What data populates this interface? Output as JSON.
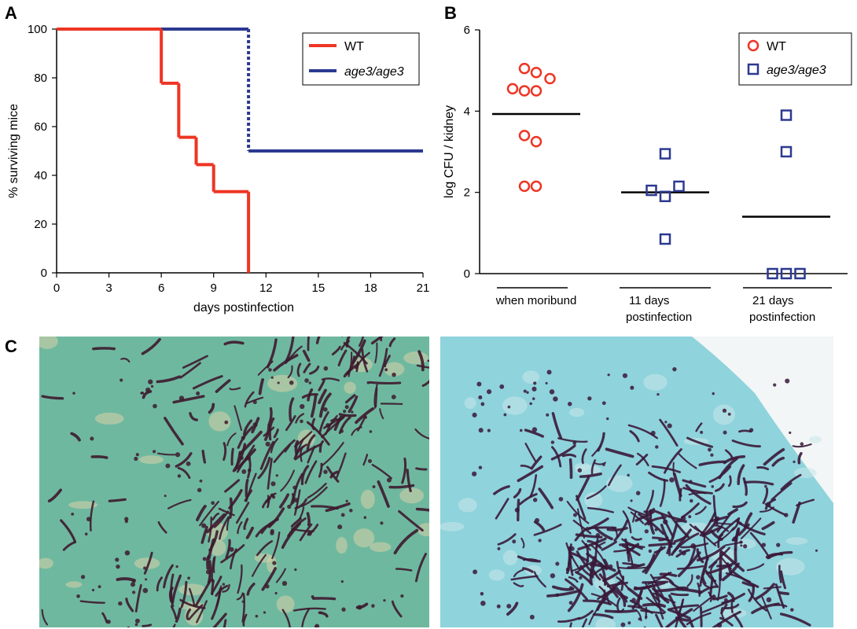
{
  "panels": {
    "a": "A",
    "b": "B",
    "c": "C"
  },
  "colors": {
    "wt": "#ee3524",
    "mutant": "#2b3990",
    "mean_line": "#000000"
  },
  "chart_data": [
    {
      "type": "line",
      "panel": "A",
      "xlabel": "days postinfection",
      "ylabel": "% surviving mice",
      "xlim": [
        0,
        21
      ],
      "ylim": [
        0,
        100
      ],
      "xticks": [
        "0",
        "3",
        "6",
        "9",
        "12",
        "15",
        "18",
        "21"
      ],
      "yticks": [
        "0",
        "20",
        "40",
        "60",
        "80",
        "100"
      ],
      "legend": {
        "position": "top-right",
        "entries": [
          "WT",
          "age3/age3"
        ]
      },
      "series": [
        {
          "name": "WT",
          "color": "#ee3524",
          "step": true,
          "x": [
            0,
            6,
            7,
            8,
            9,
            11
          ],
          "y": [
            100,
            77.8,
            55.6,
            44.4,
            33.3,
            0
          ]
        },
        {
          "name": "age3/age3",
          "color": "#2b3990",
          "step": true,
          "x": [
            0,
            11,
            21
          ],
          "y": [
            100,
            50,
            50
          ]
        }
      ]
    },
    {
      "type": "scatter",
      "panel": "B",
      "ylabel": "log CFU / kidney",
      "ylim": [
        0,
        6
      ],
      "yticks": [
        "0",
        "2",
        "4",
        "6"
      ],
      "categories": [
        "when moribund",
        "11 days postinfection",
        "21 days postinfection"
      ],
      "category_lines": [
        [
          "when moribund"
        ],
        [
          "11 days",
          "postinfection"
        ],
        [
          "21 days",
          "postinfection"
        ]
      ],
      "legend": {
        "position": "top-right",
        "entries": [
          "WT",
          "age3/age3"
        ]
      },
      "series": [
        {
          "name": "WT",
          "marker": "circle",
          "color": "#ee3524",
          "points": [
            {
              "group": 0,
              "offset": -0.6,
              "y": 4.55
            },
            {
              "group": 0,
              "offset": -0.3,
              "y": 5.05
            },
            {
              "group": 0,
              "offset": -0.3,
              "y": 4.5
            },
            {
              "group": 0,
              "offset": 0.0,
              "y": 4.95
            },
            {
              "group": 0,
              "offset": 0.0,
              "y": 4.5
            },
            {
              "group": 0,
              "offset": 0.35,
              "y": 4.8
            },
            {
              "group": 0,
              "offset": -0.3,
              "y": 3.4
            },
            {
              "group": 0,
              "offset": 0.0,
              "y": 3.25
            },
            {
              "group": 0,
              "offset": -0.3,
              "y": 2.15
            },
            {
              "group": 0,
              "offset": 0.0,
              "y": 2.15
            }
          ]
        },
        {
          "name": "age3/age3",
          "marker": "square",
          "color": "#2b3990",
          "points": [
            {
              "group": 1,
              "offset": 0.0,
              "y": 2.95
            },
            {
              "group": 1,
              "offset": -0.35,
              "y": 2.05
            },
            {
              "group": 1,
              "offset": 0.0,
              "y": 1.9
            },
            {
              "group": 1,
              "offset": 0.35,
              "y": 2.15
            },
            {
              "group": 1,
              "offset": 0.0,
              "y": 0.85
            },
            {
              "group": 2,
              "offset": 0.0,
              "y": 3.9
            },
            {
              "group": 2,
              "offset": 0.0,
              "y": 3.0
            },
            {
              "group": 2,
              "offset": -0.35,
              "y": 0.0
            },
            {
              "group": 2,
              "offset": 0.0,
              "y": 0.0
            },
            {
              "group": 2,
              "offset": 0.35,
              "y": 0.0
            }
          ]
        }
      ],
      "means": [
        3.93,
        2.0,
        1.4
      ]
    }
  ],
  "micrographs": [
    {
      "name": "wt-kidney-histology",
      "background": "#6fb8a0",
      "stain": "#3d1a2e"
    },
    {
      "name": "mutant-kidney-histology",
      "background": "#8fd3dc",
      "stain": "#3a1838"
    }
  ]
}
